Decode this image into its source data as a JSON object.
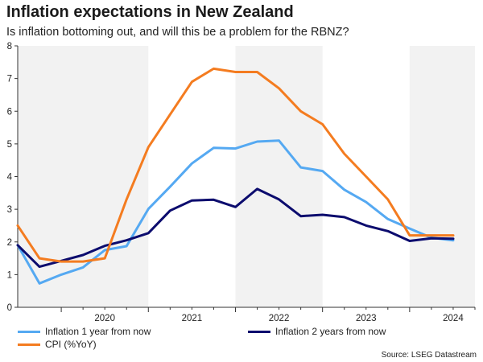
{
  "header": {
    "title": "Inflation expectations in New Zealand",
    "subtitle": "Is inflation bottoming out, and will this be a problem for the RBNZ?"
  },
  "source": "Source: LSEG Datastream",
  "chart_data": {
    "type": "line",
    "title": "Inflation expectations in New Zealand",
    "subtitle": "Is inflation bottoming out, and will this be a problem for the RBNZ?",
    "xlabel": "",
    "ylabel": "",
    "x_ticks": [
      "2020",
      "2021",
      "2022",
      "2023",
      "2024"
    ],
    "x_range": [
      2019.5,
      2024.75
    ],
    "ylim": [
      0,
      8
    ],
    "y_ticks": [
      0,
      1,
      2,
      3,
      4,
      5,
      6,
      7,
      8
    ],
    "shaded_years": [
      "2019-2020",
      "2022",
      "2024"
    ],
    "grid": false,
    "legend_position": "bottom",
    "series": [
      {
        "name": "Inflation 1 year from now",
        "color": "#55a9f2",
        "x": [
          2019.5,
          2019.75,
          2020.0,
          2020.25,
          2020.5,
          2020.75,
          2021.0,
          2021.25,
          2021.5,
          2021.75,
          2022.0,
          2022.25,
          2022.5,
          2022.75,
          2023.0,
          2023.25,
          2023.5,
          2023.75,
          2024.0,
          2024.25,
          2024.5
        ],
        "values": [
          1.9,
          0.73,
          1.0,
          1.22,
          1.75,
          1.87,
          3.01,
          3.69,
          4.4,
          4.88,
          4.86,
          5.07,
          5.1,
          4.28,
          4.17,
          3.6,
          3.22,
          2.7,
          2.41,
          2.13,
          2.05
        ]
      },
      {
        "name": "Inflation 2 years from now",
        "color": "#0c0c6e",
        "x": [
          2019.5,
          2019.75,
          2020.0,
          2020.25,
          2020.5,
          2020.75,
          2021.0,
          2021.25,
          2021.5,
          2021.75,
          2022.0,
          2022.25,
          2022.5,
          2022.75,
          2023.0,
          2023.25,
          2023.5,
          2023.75,
          2024.0,
          2024.25,
          2024.5
        ],
        "values": [
          1.9,
          1.24,
          1.42,
          1.6,
          1.88,
          2.05,
          2.27,
          2.96,
          3.27,
          3.29,
          3.07,
          3.62,
          3.3,
          2.79,
          2.83,
          2.76,
          2.5,
          2.33,
          2.03,
          2.11,
          2.1
        ]
      },
      {
        "name": "CPI (%YoY)",
        "color": "#f47c20",
        "x": [
          2019.5,
          2019.75,
          2020.0,
          2020.25,
          2020.5,
          2020.75,
          2021.0,
          2021.25,
          2021.5,
          2021.75,
          2022.0,
          2022.25,
          2022.5,
          2022.75,
          2023.0,
          2023.25,
          2023.5,
          2023.75,
          2024.0,
          2024.25,
          2024.5
        ],
        "values": [
          2.5,
          1.5,
          1.4,
          1.4,
          1.5,
          3.3,
          4.9,
          5.9,
          6.9,
          7.3,
          7.2,
          7.2,
          6.7,
          6.0,
          5.6,
          4.7,
          4.0,
          3.3,
          2.2,
          2.2,
          2.2
        ]
      }
    ]
  }
}
